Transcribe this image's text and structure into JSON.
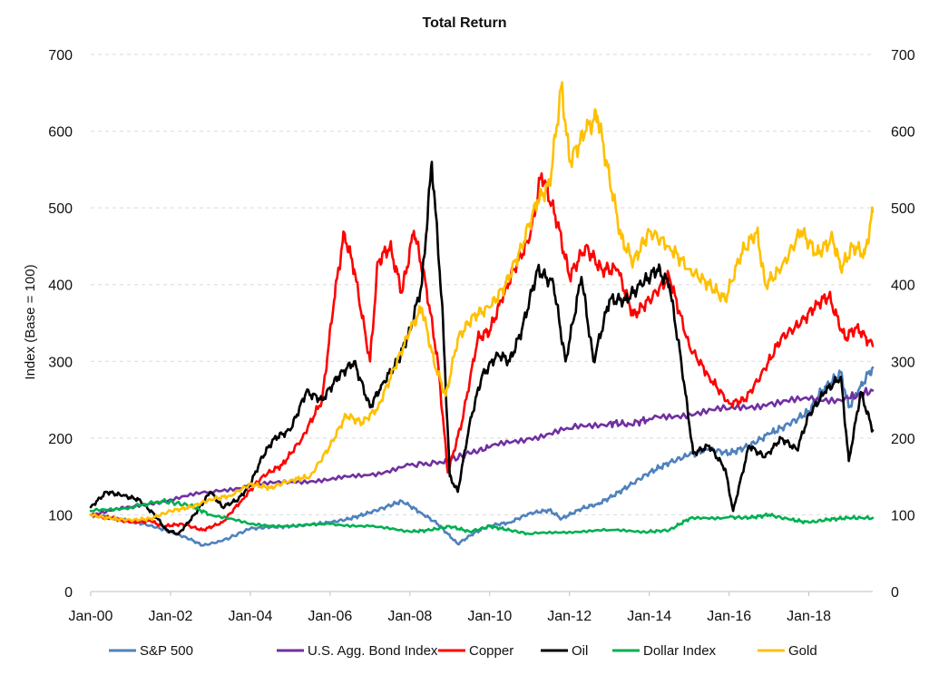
{
  "chart_data": {
    "type": "line",
    "title": "Total Return",
    "ylabel": "Index (Base = 100)",
    "y2label": "",
    "xlabel": "",
    "ylim": [
      0,
      700
    ],
    "y_ticks": [
      0,
      100,
      200,
      300,
      400,
      500,
      600,
      700
    ],
    "xlim": [
      2000.0,
      2019.6
    ],
    "x_ticks": [
      {
        "x": 2000,
        "label": "Jan-00"
      },
      {
        "x": 2002,
        "label": "Jan-02"
      },
      {
        "x": 2004,
        "label": "Jan-04"
      },
      {
        "x": 2006,
        "label": "Jan-06"
      },
      {
        "x": 2008,
        "label": "Jan-08"
      },
      {
        "x": 2010,
        "label": "Jan-10"
      },
      {
        "x": 2012,
        "label": "Jan-12"
      },
      {
        "x": 2014,
        "label": "Jan-14"
      },
      {
        "x": 2016,
        "label": "Jan-16"
      },
      {
        "x": 2018,
        "label": "Jan-18"
      }
    ],
    "grid": true,
    "legend_position": "bottom",
    "series": [
      {
        "name": "S&P 500",
        "color": "#4f81bd",
        "x": [
          2000.0,
          2000.5,
          2001.0,
          2001.5,
          2002.0,
          2002.5,
          2002.8,
          2003.3,
          2004.0,
          2004.5,
          2005.0,
          2005.5,
          2006.0,
          2006.5,
          2007.0,
          2007.5,
          2007.8,
          2008.3,
          2008.7,
          2009.2,
          2009.6,
          2010.0,
          2010.5,
          2011.0,
          2011.5,
          2011.8,
          2012.3,
          2012.7,
          2013.0,
          2013.5,
          2014.0,
          2014.5,
          2015.0,
          2015.5,
          2016.0,
          2016.5,
          2017.0,
          2017.5,
          2018.0,
          2018.3,
          2018.8,
          2019.0,
          2019.3,
          2019.6
        ],
        "y": [
          100,
          96,
          92,
          86,
          78,
          68,
          60,
          66,
          82,
          84,
          85,
          87,
          90,
          95,
          103,
          112,
          118,
          102,
          88,
          62,
          76,
          86,
          90,
          102,
          106,
          95,
          108,
          114,
          122,
          138,
          155,
          168,
          178,
          186,
          180,
          190,
          205,
          218,
          235,
          260,
          285,
          240,
          268,
          292
        ]
      },
      {
        "name": "U.S. Agg. Bond Index",
        "color": "#7030a0",
        "x": [
          2000.0,
          2001.0,
          2002.0,
          2003.0,
          2004.0,
          2005.0,
          2006.0,
          2007.0,
          2008.0,
          2008.8,
          2009.5,
          2010.0,
          2011.0,
          2012.0,
          2013.0,
          2013.5,
          2014.0,
          2015.0,
          2016.0,
          2017.0,
          2018.0,
          2019.0,
          2019.6
        ],
        "y": [
          100,
          110,
          120,
          130,
          138,
          143,
          146,
          152,
          165,
          168,
          180,
          188,
          200,
          212,
          220,
          218,
          225,
          232,
          238,
          245,
          250,
          252,
          262
        ]
      },
      {
        "name": "Copper",
        "color": "#ff0000",
        "x": [
          2000.0,
          2000.5,
          2001.0,
          2001.5,
          2001.8,
          2002.3,
          2002.8,
          2003.3,
          2003.8,
          2004.3,
          2004.8,
          2005.3,
          2005.8,
          2006.1,
          2006.35,
          2006.6,
          2007.0,
          2007.2,
          2007.5,
          2007.8,
          2008.1,
          2008.4,
          2008.7,
          2008.95,
          2009.3,
          2009.7,
          2010.0,
          2010.3,
          2010.6,
          2011.0,
          2011.3,
          2011.7,
          2012.0,
          2012.4,
          2012.8,
          2013.2,
          2013.6,
          2014.0,
          2014.5,
          2015.0,
          2015.5,
          2016.0,
          2016.4,
          2016.9,
          2017.3,
          2017.8,
          2018.2,
          2018.5,
          2018.9,
          2019.2,
          2019.6
        ],
        "y": [
          100,
          96,
          90,
          92,
          85,
          88,
          80,
          90,
          120,
          150,
          165,
          200,
          250,
          380,
          468,
          420,
          300,
          430,
          450,
          390,
          470,
          400,
          300,
          155,
          220,
          330,
          340,
          380,
          420,
          460,
          545,
          480,
          410,
          450,
          420,
          420,
          360,
          380,
          410,
          320,
          280,
          245,
          250,
          290,
          330,
          350,
          375,
          385,
          330,
          345,
          320
        ]
      },
      {
        "name": "Oil",
        "color": "#000000",
        "x": [
          2000.0,
          2000.4,
          2000.8,
          2001.2,
          2001.6,
          2001.9,
          2002.2,
          2002.6,
          2003.0,
          2003.3,
          2003.7,
          2004.0,
          2004.3,
          2004.6,
          2005.0,
          2005.4,
          2005.8,
          2006.2,
          2006.6,
          2007.0,
          2007.3,
          2007.7,
          2008.0,
          2008.3,
          2008.55,
          2008.8,
          2009.0,
          2009.2,
          2009.5,
          2009.8,
          2010.2,
          2010.5,
          2010.8,
          2011.2,
          2011.6,
          2011.9,
          2012.3,
          2012.6,
          2013.0,
          2013.4,
          2013.8,
          2014.2,
          2014.5,
          2014.8,
          2015.1,
          2015.5,
          2015.9,
          2016.1,
          2016.5,
          2016.9,
          2017.3,
          2017.7,
          2018.0,
          2018.4,
          2018.8,
          2019.0,
          2019.3,
          2019.6
        ],
        "y": [
          110,
          130,
          125,
          120,
          100,
          80,
          75,
          100,
          130,
          110,
          120,
          140,
          175,
          200,
          210,
          260,
          250,
          280,
          300,
          240,
          270,
          300,
          340,
          400,
          560,
          380,
          150,
          130,
          220,
          280,
          310,
          300,
          340,
          420,
          400,
          300,
          410,
          300,
          380,
          380,
          400,
          420,
          400,
          300,
          180,
          190,
          160,
          105,
          190,
          175,
          200,
          185,
          230,
          260,
          280,
          170,
          260,
          210
        ]
      },
      {
        "name": "Dollar Index",
        "color": "#00b050",
        "x": [
          2000.0,
          2001.0,
          2001.8,
          2002.5,
          2003.0,
          2004.0,
          2005.0,
          2006.0,
          2007.0,
          2008.0,
          2008.5,
          2009.0,
          2009.5,
          2010.0,
          2010.5,
          2011.0,
          2012.0,
          2013.0,
          2014.0,
          2014.5,
          2015.0,
          2016.0,
          2016.5,
          2017.0,
          2017.5,
          2018.0,
          2018.5,
          2019.0,
          2019.6
        ],
        "y": [
          105,
          110,
          118,
          112,
          100,
          88,
          85,
          88,
          85,
          78,
          80,
          85,
          78,
          85,
          80,
          75,
          78,
          80,
          78,
          80,
          95,
          97,
          96,
          100,
          94,
          90,
          94,
          96,
          96
        ]
      },
      {
        "name": "Gold",
        "color": "#ffc000",
        "x": [
          2000.0,
          2000.5,
          2001.0,
          2001.5,
          2002.0,
          2002.5,
          2003.0,
          2003.5,
          2004.0,
          2004.5,
          2005.0,
          2005.5,
          2006.0,
          2006.4,
          2006.8,
          2007.2,
          2007.6,
          2008.0,
          2008.3,
          2008.6,
          2008.9,
          2009.2,
          2009.6,
          2010.0,
          2010.4,
          2010.8,
          2011.2,
          2011.5,
          2011.8,
          2012.0,
          2012.4,
          2012.7,
          2013.0,
          2013.3,
          2013.6,
          2014.0,
          2014.5,
          2015.0,
          2015.5,
          2015.9,
          2016.3,
          2016.7,
          2016.9,
          2017.3,
          2017.8,
          2018.2,
          2018.6,
          2018.8,
          2019.1,
          2019.4,
          2019.6
        ],
        "y": [
          100,
          95,
          93,
          95,
          105,
          110,
          120,
          125,
          140,
          135,
          145,
          150,
          190,
          230,
          220,
          240,
          290,
          340,
          370,
          300,
          255,
          330,
          360,
          370,
          400,
          450,
          510,
          530,
          660,
          560,
          600,
          620,
          540,
          460,
          430,
          470,
          450,
          420,
          400,
          380,
          440,
          470,
          400,
          420,
          470,
          440,
          460,
          420,
          450,
          440,
          495
        ]
      }
    ]
  }
}
